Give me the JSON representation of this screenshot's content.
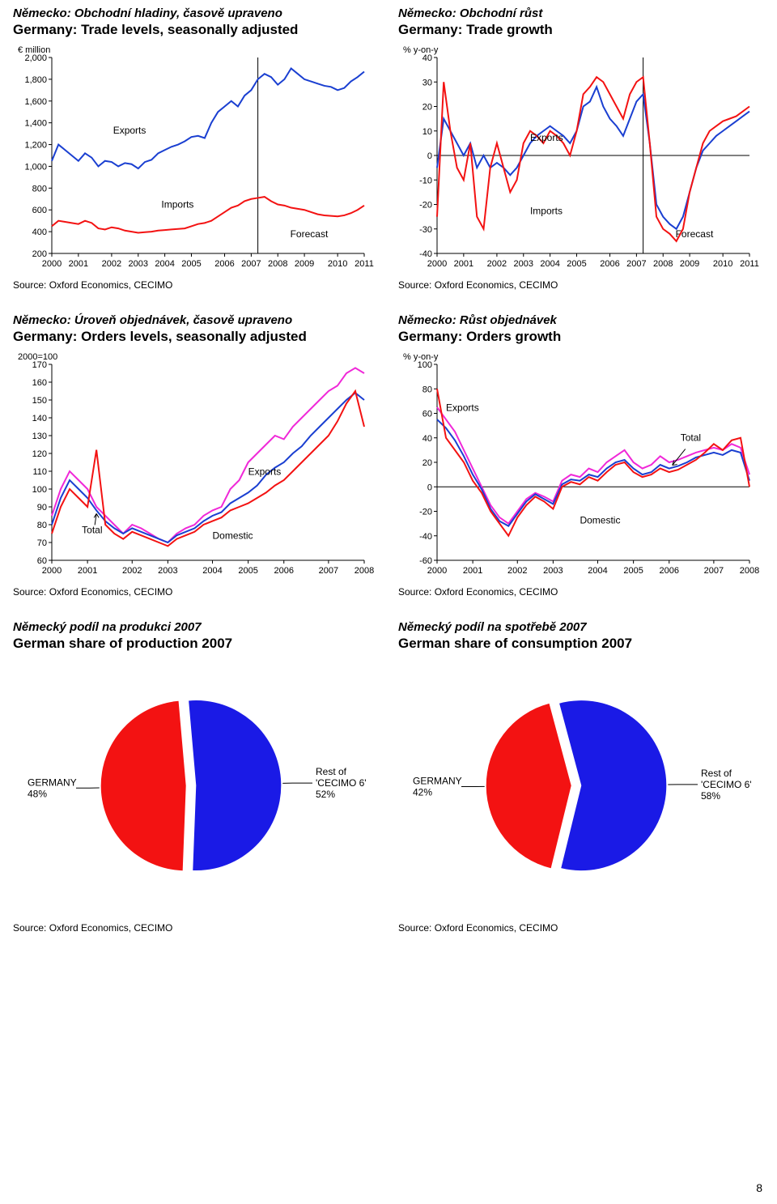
{
  "page_number": "8",
  "colors": {
    "blue": "#1a3fd1",
    "red": "#f31212",
    "magenta": "#f028d8",
    "black": "#000000",
    "axis": "#000000",
    "bg": "#ffffff"
  },
  "panels": {
    "trade_levels": {
      "cz_title": "Německo: Obchodní hladiny, časově upraveno",
      "en_title": "Germany: Trade levels, seasonally adjusted",
      "y_unit": "€ million",
      "type": "line",
      "x_years": [
        "2000",
        "2001",
        "2002",
        "2003",
        "2004",
        "2005",
        "2006",
        "2007",
        "2008",
        "2009",
        "2010",
        "2011"
      ],
      "ylim": [
        200,
        2000
      ],
      "ytick_step": 200,
      "forecast_from_idx": 31,
      "labels": {
        "exports": "Exports",
        "imports": "Imports",
        "forecast": "Forecast"
      },
      "series": {
        "exports": {
          "color": "#1a3fd1",
          "width": 2,
          "y": [
            1050,
            1200,
            1150,
            1100,
            1050,
            1120,
            1080,
            1000,
            1050,
            1040,
            1000,
            1030,
            1020,
            980,
            1040,
            1060,
            1120,
            1150,
            1180,
            1200,
            1230,
            1270,
            1280,
            1260,
            1400,
            1500,
            1550,
            1600,
            1550,
            1650,
            1700,
            1800,
            1850,
            1820,
            1750,
            1800,
            1900,
            1850,
            1800,
            1780,
            1760,
            1740,
            1730,
            1700,
            1720,
            1780,
            1820,
            1870
          ]
        },
        "imports": {
          "color": "#f31212",
          "width": 2,
          "y": [
            450,
            500,
            490,
            480,
            470,
            500,
            480,
            430,
            420,
            440,
            430,
            410,
            400,
            390,
            395,
            400,
            410,
            415,
            420,
            425,
            430,
            450,
            470,
            480,
            500,
            540,
            580,
            620,
            640,
            680,
            700,
            710,
            720,
            680,
            650,
            640,
            620,
            610,
            600,
            580,
            560,
            550,
            545,
            540,
            550,
            570,
            600,
            640
          ]
        }
      },
      "source": "Source: Oxford Economics, CECIMO"
    },
    "trade_growth": {
      "cz_title": "Německo: Obchodní růst",
      "en_title": "Germany: Trade growth",
      "y_unit": "% y-on-y",
      "type": "line",
      "x_years": [
        "2000",
        "2001",
        "2002",
        "2003",
        "2004",
        "2005",
        "2006",
        "2007",
        "2008",
        "2009",
        "2010",
        "2011"
      ],
      "ylim": [
        -40,
        40
      ],
      "ytick_step": 10,
      "forecast_from_idx": 31,
      "labels": {
        "exports": "Exports",
        "imports": "Imports",
        "forecast": "Forecast"
      },
      "series": {
        "exports": {
          "color": "#1a3fd1",
          "width": 2,
          "y": [
            -5,
            15,
            10,
            5,
            0,
            5,
            -5,
            0,
            -5,
            -3,
            -5,
            -8,
            -5,
            0,
            5,
            8,
            10,
            12,
            10,
            8,
            5,
            10,
            20,
            22,
            28,
            20,
            15,
            12,
            8,
            15,
            22,
            25,
            5,
            -20,
            -25,
            -28,
            -30,
            -25,
            -15,
            -5,
            2,
            5,
            8,
            10,
            12,
            14,
            16,
            18
          ]
        },
        "imports": {
          "color": "#f31212",
          "width": 2,
          "y": [
            -25,
            30,
            10,
            -5,
            -10,
            5,
            -25,
            -30,
            -5,
            5,
            -5,
            -15,
            -10,
            5,
            10,
            8,
            5,
            10,
            8,
            5,
            0,
            10,
            25,
            28,
            32,
            30,
            25,
            20,
            15,
            25,
            30,
            32,
            5,
            -25,
            -30,
            -32,
            -35,
            -30,
            -15,
            -5,
            5,
            10,
            12,
            14,
            15,
            16,
            18,
            20
          ]
        }
      },
      "source": "Source: Oxford Economics, CECIMO"
    },
    "orders_levels": {
      "cz_title": "Německo: Úroveň objednávek, časově upraveno",
      "en_title": "Germany: Orders levels, seasonally adjusted",
      "y_unit": "2000=100",
      "type": "line",
      "x_years": [
        "2000",
        "2001",
        "2002",
        "2003",
        "2004",
        "2005",
        "2006",
        "2007",
        "2008"
      ],
      "ylim": [
        60,
        170
      ],
      "ytick_step": 10,
      "labels": {
        "exports": "Exports",
        "domestic": "Domestic",
        "total": "Total"
      },
      "series": {
        "exports": {
          "color": "#f028d8",
          "width": 2,
          "y": [
            85,
            100,
            110,
            105,
            100,
            90,
            85,
            80,
            75,
            80,
            78,
            75,
            72,
            70,
            75,
            78,
            80,
            85,
            88,
            90,
            100,
            105,
            115,
            120,
            125,
            130,
            128,
            135,
            140,
            145,
            150,
            155,
            158,
            165,
            168,
            165
          ]
        },
        "total": {
          "color": "#1a3fd1",
          "width": 2,
          "y": [
            80,
            95,
            105,
            100,
            95,
            88,
            82,
            78,
            75,
            78,
            76,
            74,
            72,
            70,
            74,
            76,
            78,
            82,
            85,
            87,
            92,
            95,
            98,
            102,
            108,
            112,
            115,
            120,
            124,
            130,
            135,
            140,
            145,
            150,
            154,
            150
          ]
        },
        "domestic": {
          "color": "#f31212",
          "width": 2,
          "y": [
            75,
            90,
            100,
            95,
            90,
            122,
            80,
            75,
            72,
            76,
            74,
            72,
            70,
            68,
            72,
            74,
            76,
            80,
            82,
            84,
            88,
            90,
            92,
            95,
            98,
            102,
            105,
            110,
            115,
            120,
            125,
            130,
            138,
            148,
            155,
            135
          ]
        }
      },
      "total_arrow_at": 5,
      "source": "Source: Oxford Economics, CECIMO"
    },
    "orders_growth": {
      "cz_title": "Německo: Růst objednávek",
      "en_title": "Germany: Orders growth",
      "y_unit": "% y-on-y",
      "type": "line",
      "x_years": [
        "2000",
        "2001",
        "2002",
        "2003",
        "2004",
        "2005",
        "2006",
        "2007",
        "2008"
      ],
      "ylim": [
        -60,
        100
      ],
      "ytick_step": 20,
      "labels": {
        "exports": "Exports",
        "domestic": "Domestic",
        "total": "Total"
      },
      "series": {
        "exports": {
          "color": "#f028d8",
          "width": 2,
          "y": [
            65,
            55,
            45,
            30,
            15,
            0,
            -15,
            -25,
            -30,
            -20,
            -10,
            -5,
            -8,
            -12,
            5,
            10,
            8,
            15,
            12,
            20,
            25,
            30,
            20,
            15,
            18,
            25,
            20,
            22,
            25,
            28,
            30,
            32,
            30,
            35,
            32,
            10
          ]
        },
        "total": {
          "color": "#1a3fd1",
          "width": 2,
          "y": [
            55,
            48,
            38,
            25,
            10,
            -2,
            -18,
            -28,
            -32,
            -22,
            -12,
            -6,
            -10,
            -14,
            2,
            6,
            5,
            10,
            8,
            15,
            20,
            22,
            15,
            10,
            12,
            18,
            15,
            17,
            20,
            24,
            26,
            28,
            26,
            30,
            28,
            5
          ]
        },
        "domestic": {
          "color": "#f31212",
          "width": 2,
          "y": [
            80,
            40,
            30,
            20,
            5,
            -5,
            -20,
            -30,
            -40,
            -25,
            -15,
            -8,
            -12,
            -18,
            0,
            4,
            2,
            8,
            5,
            12,
            18,
            20,
            12,
            8,
            10,
            15,
            12,
            14,
            18,
            22,
            28,
            35,
            30,
            38,
            40,
            0
          ]
        }
      },
      "total_arrow_at": 26,
      "source": "Source: Oxford Economics, CECIMO"
    },
    "pie_prod": {
      "cz_title": "Německý podíl na produkci 2007",
      "en_title": "German share of production 2007",
      "type": "pie",
      "slices": [
        {
          "label_lines": [
            "Rest of",
            "'CECIMO 6'",
            "52%"
          ],
          "pct": 52,
          "color": "#1a1ae6",
          "explode": 0.06
        },
        {
          "label_lines": [
            "GERMANY",
            "48%"
          ],
          "pct": 48,
          "color": "#f31212",
          "explode": 0.06
        }
      ],
      "start_angle": 95,
      "source": "Source: Oxford Economics, CECIMO"
    },
    "pie_cons": {
      "cz_title": "Německý podíl na spotřebě 2007",
      "en_title": "German share of consumption 2007",
      "type": "pie",
      "slices": [
        {
          "label_lines": [
            "Rest of",
            "'CECIMO 6'",
            "58%"
          ],
          "pct": 58,
          "color": "#1a1ae6",
          "explode": 0.06
        },
        {
          "label_lines": [
            "GERMANY",
            "42%"
          ],
          "pct": 42,
          "color": "#f31212",
          "explode": 0.06
        }
      ],
      "start_angle": 105,
      "source": "Source: Oxford Economics, CECIMO"
    }
  }
}
